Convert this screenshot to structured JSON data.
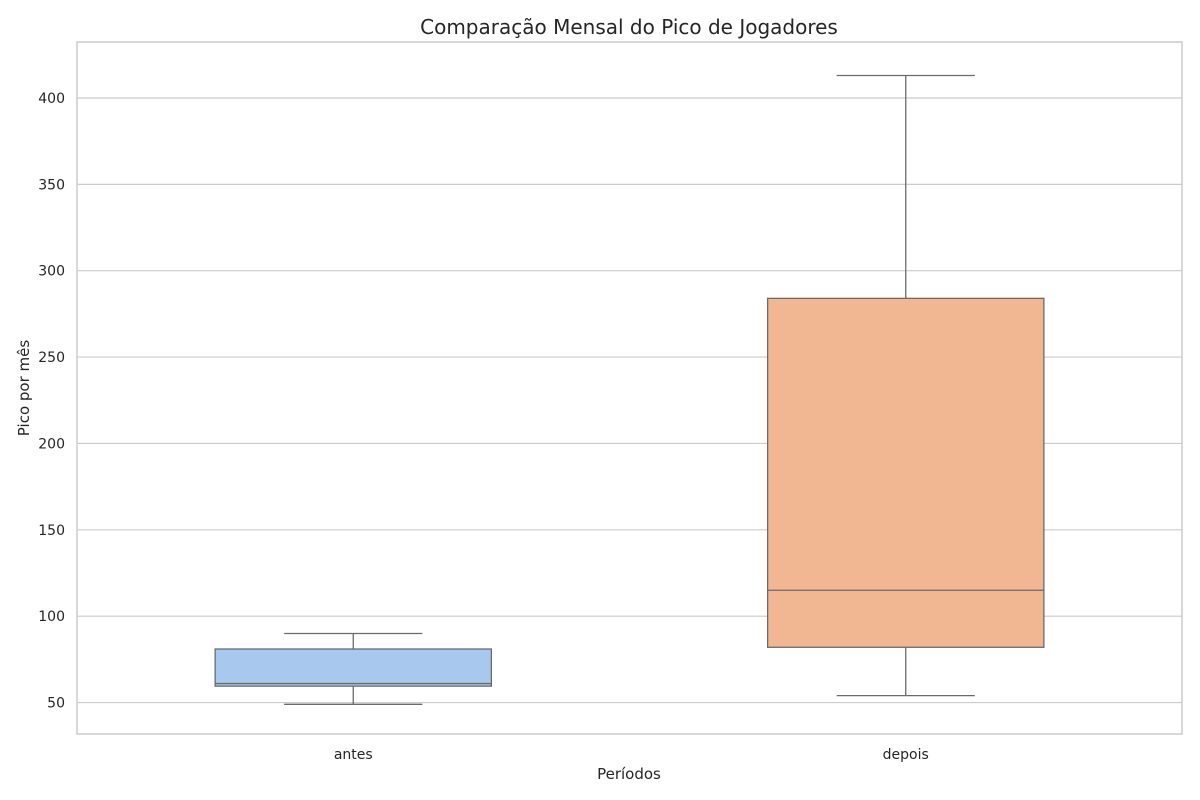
{
  "chart_data": {
    "type": "box",
    "title": "Comparação Mensal do Pico de Jogadores",
    "xlabel": "Períodos",
    "ylabel": "Pico por mês",
    "categories": [
      "antes",
      "depois"
    ],
    "boxes": [
      {
        "category": "antes",
        "min": 49,
        "q1": 59.5,
        "median": 61,
        "q3": 81,
        "max": 90,
        "color": "#a9c8ee"
      },
      {
        "category": "depois",
        "min": 54,
        "q1": 82,
        "median": 115,
        "q3": 284,
        "max": 413,
        "color": "#f0b792"
      }
    ],
    "yticks": [
      50,
      100,
      150,
      200,
      250,
      300,
      350,
      400
    ],
    "ylim": [
      31.8,
      432.4
    ],
    "grid": true,
    "style": {
      "grid_color": "#cccccc",
      "frame_color": "#cccccc",
      "line_color": "#6b6b6b",
      "background": "#ffffff"
    }
  }
}
